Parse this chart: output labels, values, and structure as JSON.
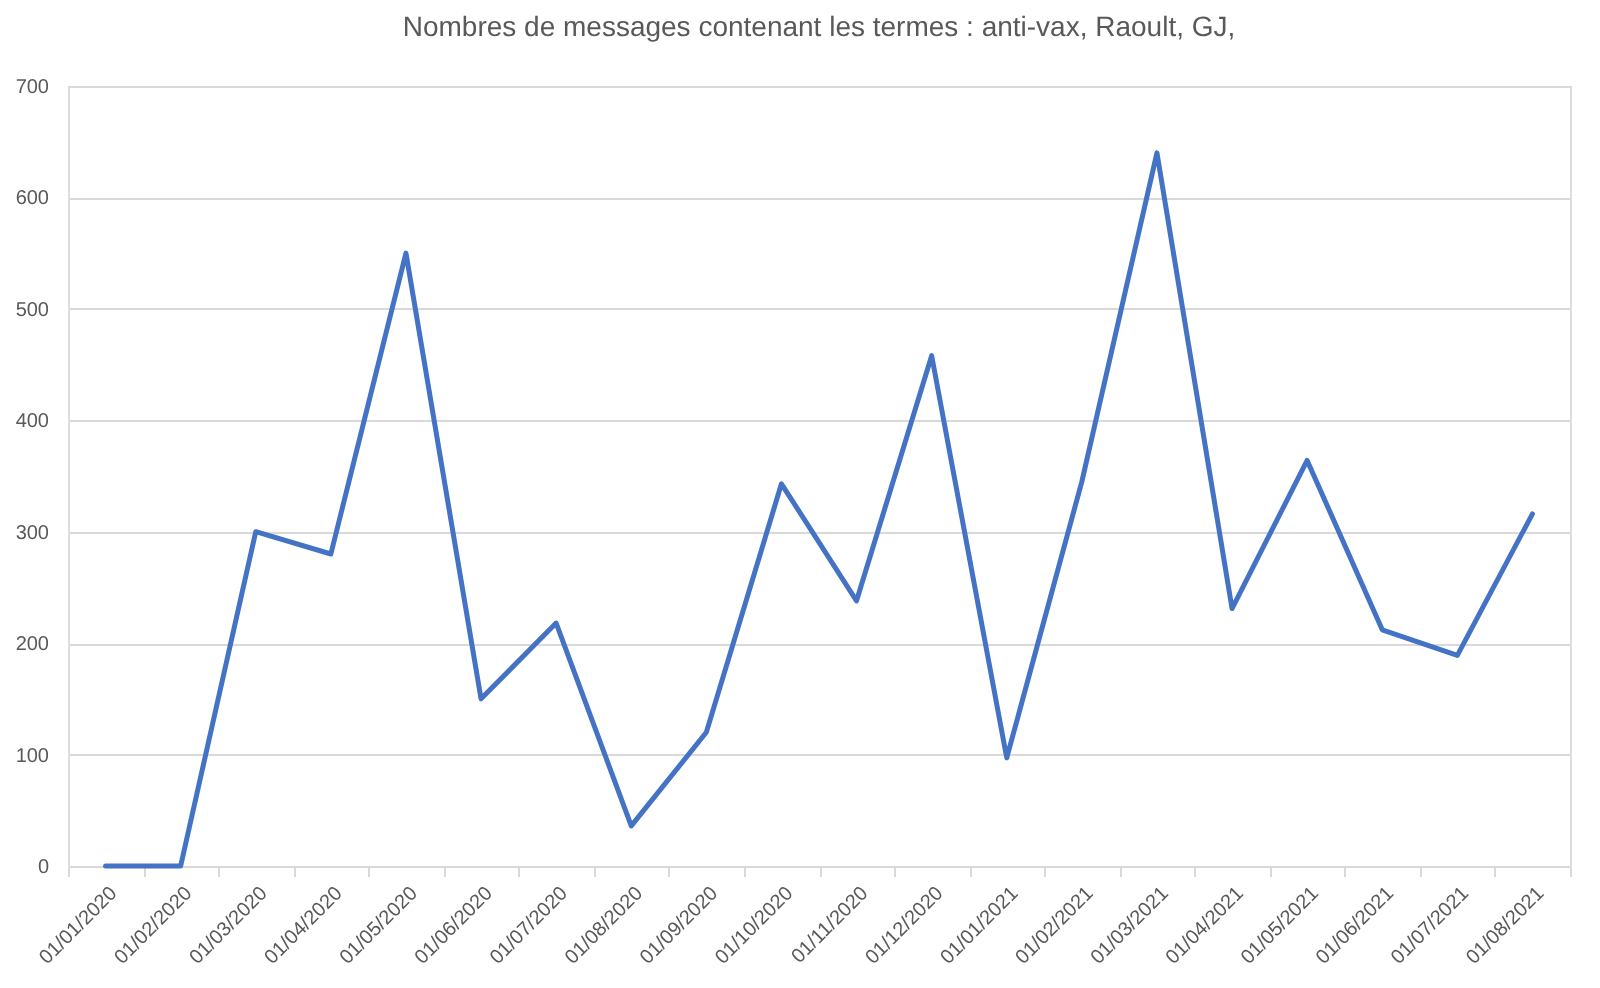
{
  "chart_data": {
    "type": "line",
    "title": "Nombres de messages contenant les termes :  anti-vax, Raoult, GJ,",
    "categories": [
      "01/01/2020",
      "01/02/2020",
      "01/03/2020",
      "01/04/2020",
      "01/05/2020",
      "01/06/2020",
      "01/07/2020",
      "01/08/2020",
      "01/09/2020",
      "01/10/2020",
      "01/11/2020",
      "01/12/2020",
      "01/01/2021",
      "01/02/2021",
      "01/03/2021",
      "01/04/2021",
      "01/05/2021",
      "01/06/2021",
      "01/07/2021",
      "01/08/2021"
    ],
    "series": [
      {
        "color": "#4472c4",
        "values": [
          0,
          0,
          300,
          280,
          550,
          150,
          218,
          36,
          120,
          343,
          238,
          458,
          97,
          345,
          640,
          231,
          364,
          212,
          189,
          316
        ]
      }
    ],
    "ylim": [
      0,
      700
    ],
    "yticks": [
      0,
      100,
      200,
      300,
      400,
      500,
      600,
      700
    ],
    "grid": "y",
    "line_style": "solid"
  }
}
